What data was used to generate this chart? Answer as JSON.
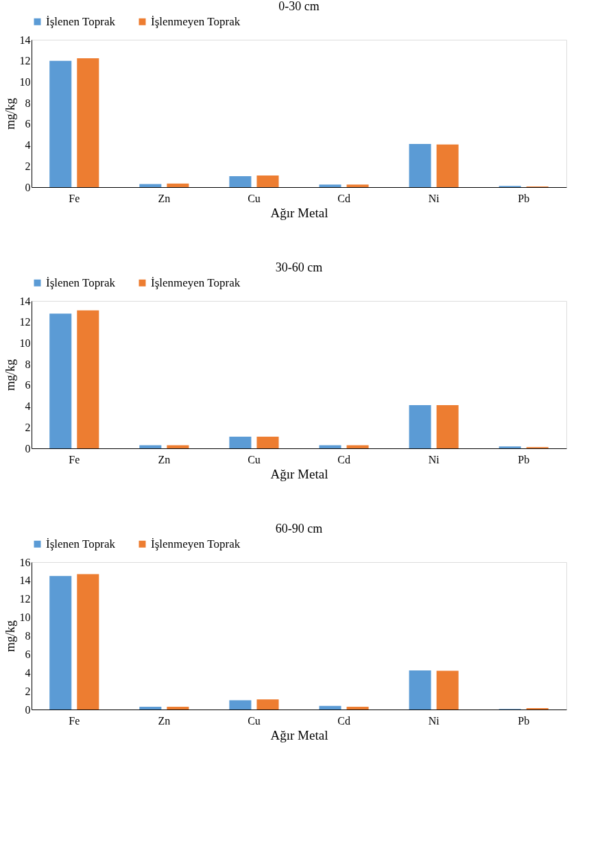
{
  "chart_data": [
    {
      "type": "bar",
      "title": "0-30 cm",
      "xlabel": "Ağır Metal",
      "ylabel": "mg/kg",
      "categories": [
        "Fe",
        "Zn",
        "Cu",
        "Cd",
        "Ni",
        "Pb"
      ],
      "ylim": [
        0,
        14
      ],
      "yticks": [
        0,
        2,
        4,
        6,
        8,
        10,
        12,
        14
      ],
      "grid": false,
      "legend": "top",
      "series": [
        {
          "name": "İşlenen Toprak",
          "color": "#5b9bd5",
          "values": [
            12.0,
            0.3,
            1.05,
            0.25,
            4.1,
            0.12
          ]
        },
        {
          "name": "İşlenmeyen Toprak",
          "color": "#ed7d31",
          "values": [
            12.25,
            0.35,
            1.1,
            0.25,
            4.05,
            0.06
          ]
        }
      ]
    },
    {
      "type": "bar",
      "title": "30-60 cm",
      "xlabel": "Ağır Metal",
      "ylabel": "mg/kg",
      "categories": [
        "Fe",
        "Zn",
        "Cu",
        "Cd",
        "Ni",
        "Pb"
      ],
      "ylim": [
        0,
        14
      ],
      "yticks": [
        0,
        2,
        4,
        6,
        8,
        10,
        12,
        14
      ],
      "grid": false,
      "legend": "top",
      "series": [
        {
          "name": "İşlenen Toprak",
          "color": "#5b9bd5",
          "values": [
            12.8,
            0.3,
            1.1,
            0.3,
            4.1,
            0.18
          ]
        },
        {
          "name": "İşlenmeyen Toprak",
          "color": "#ed7d31",
          "values": [
            13.1,
            0.3,
            1.1,
            0.3,
            4.1,
            0.12
          ]
        }
      ]
    },
    {
      "type": "bar",
      "title": "60-90 cm",
      "xlabel": "Ağır Metal",
      "ylabel": "mg/kg",
      "categories": [
        "Fe",
        "Zn",
        "Cu",
        "Cd",
        "Ni",
        "Pb"
      ],
      "ylim": [
        0,
        16
      ],
      "yticks": [
        0,
        2,
        4,
        6,
        8,
        10,
        12,
        14,
        16
      ],
      "grid": false,
      "legend": "top",
      "series": [
        {
          "name": "İşlenen Toprak",
          "color": "#5b9bd5",
          "values": [
            14.5,
            0.3,
            1.0,
            0.4,
            4.25,
            0.06
          ]
        },
        {
          "name": "İşlenmeyen Toprak",
          "color": "#ed7d31",
          "values": [
            14.7,
            0.3,
            1.1,
            0.3,
            4.2,
            0.15
          ]
        }
      ]
    }
  ]
}
